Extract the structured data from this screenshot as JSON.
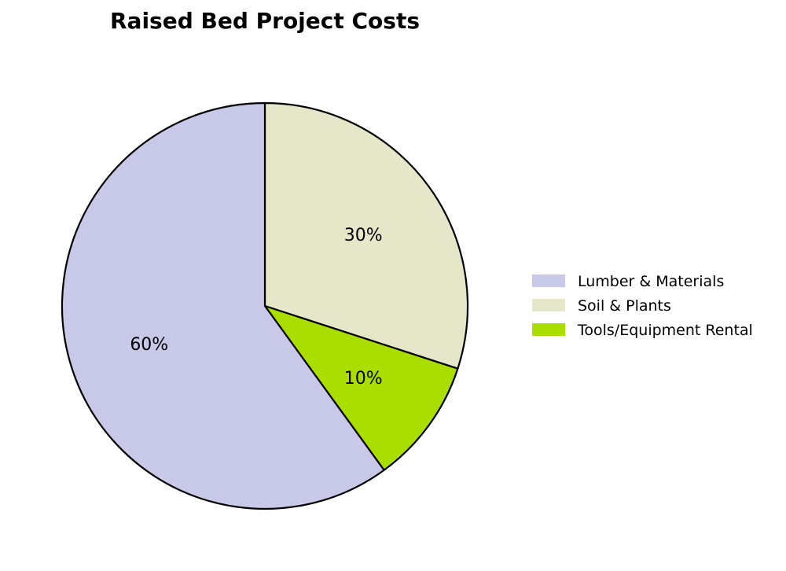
{
  "chart_data": {
    "type": "pie",
    "title": "Raised Bed Project Costs",
    "start_angle_deg": 90,
    "direction": "clockwise",
    "legend_position": "right",
    "edge_color": "#000000",
    "slices": [
      {
        "label": "Lumber & Materials",
        "value": 60,
        "pct_label": "60%",
        "color": "#c8c9e8"
      },
      {
        "label": "Soil & Plants",
        "value": 30,
        "pct_label": "30%",
        "color": "#e6e6c8"
      },
      {
        "label": "Tools/Equipment Rental",
        "value": 10,
        "pct_label": "10%",
        "color": "#aade00"
      }
    ],
    "draw_order": [
      1,
      2,
      0
    ]
  }
}
